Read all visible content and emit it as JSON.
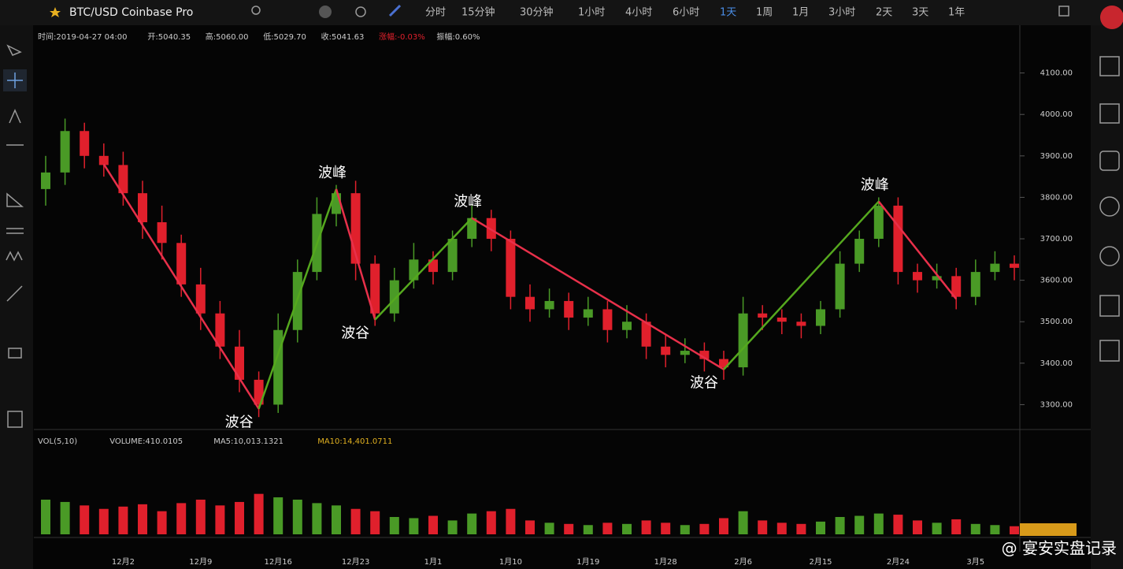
{
  "header": {
    "symbol": "BTC/USD Coinbase Pro",
    "intervals": [
      "分时",
      "15分钟",
      "30分钟",
      "1小时",
      "4小时",
      "6小时",
      "1天",
      "1周",
      "1月",
      "3小时",
      "2天",
      "3天",
      "1年"
    ],
    "active_interval": 6
  },
  "info_bar": [
    "时间:2019-04-27 04:00",
    "开:5040.35",
    "高:5060.00",
    "低:5029.70",
    "收:5041.63",
    "涨幅:-0.03%",
    "振幅:0.60%"
  ],
  "volume_legend": [
    "VOL(5,10)",
    "VOLUME:410.0105",
    "MA5:10,013.1321",
    "MA10:14,401.0711"
  ],
  "watermark": "@ 宴安实盘记录",
  "chart_data": {
    "type": "candlestick",
    "categories": [
      null,
      null,
      null,
      null,
      "12月2",
      null,
      null,
      null,
      "12月9",
      null,
      null,
      null,
      "12月16",
      null,
      null,
      null,
      "12月23",
      null,
      null,
      null,
      "1月1",
      null,
      null,
      null,
      "1月10",
      null,
      null,
      null,
      "1月19",
      null,
      null,
      null,
      "1月28",
      null,
      null,
      null,
      "2月6",
      null,
      null,
      null,
      "2月15",
      null,
      null,
      null,
      "2月24",
      null,
      null,
      null,
      "3月5",
      null,
      null
    ],
    "open": [
      3820,
      3860,
      3960,
      3900,
      3878,
      3810,
      3740,
      3690,
      3590,
      3520,
      3440,
      3360,
      3300,
      3480,
      3620,
      3760,
      3810,
      3640,
      3520,
      3600,
      3650,
      3620,
      3700,
      3750,
      3700,
      3560,
      3530,
      3550,
      3510,
      3530,
      3480,
      3500,
      3440,
      3420,
      3430,
      3410,
      3390,
      3520,
      3510,
      3500,
      3490,
      3530,
      3640,
      3700,
      3780,
      3620,
      3600,
      3610,
      3560,
      3620,
      3640
    ],
    "high": [
      3900,
      3990,
      3980,
      3930,
      3910,
      3840,
      3780,
      3710,
      3630,
      3550,
      3480,
      3380,
      3520,
      3650,
      3800,
      3830,
      3840,
      3660,
      3630,
      3690,
      3670,
      3720,
      3780,
      3770,
      3720,
      3590,
      3580,
      3570,
      3560,
      3550,
      3540,
      3520,
      3470,
      3460,
      3450,
      3430,
      3560,
      3540,
      3530,
      3520,
      3550,
      3670,
      3720,
      3800,
      3800,
      3640,
      3640,
      3630,
      3650,
      3670,
      3660
    ],
    "low": [
      3780,
      3830,
      3870,
      3850,
      3780,
      3700,
      3650,
      3560,
      3480,
      3410,
      3330,
      3270,
      3280,
      3450,
      3600,
      3730,
      3600,
      3490,
      3500,
      3580,
      3590,
      3600,
      3680,
      3670,
      3530,
      3500,
      3510,
      3480,
      3490,
      3450,
      3460,
      3410,
      3390,
      3400,
      3380,
      3360,
      3370,
      3480,
      3470,
      3460,
      3470,
      3510,
      3620,
      3680,
      3590,
      3570,
      3580,
      3530,
      3540,
      3600,
      3600
    ],
    "close": [
      3860,
      3960,
      3900,
      3878,
      3810,
      3740,
      3690,
      3590,
      3520,
      3440,
      3360,
      3300,
      3480,
      3620,
      3760,
      3810,
      3640,
      3520,
      3600,
      3650,
      3620,
      3700,
      3750,
      3700,
      3560,
      3530,
      3550,
      3510,
      3530,
      3480,
      3500,
      3440,
      3420,
      3430,
      3410,
      3390,
      3520,
      3510,
      3500,
      3490,
      3530,
      3640,
      3700,
      3780,
      3620,
      3600,
      3610,
      3560,
      3620,
      3640,
      3630
    ],
    "volume": [
      30,
      28,
      25,
      22,
      24,
      26,
      20,
      27,
      30,
      25,
      28,
      35,
      32,
      30,
      27,
      25,
      22,
      20,
      15,
      14,
      16,
      12,
      18,
      20,
      22,
      12,
      10,
      9,
      8,
      10,
      9,
      12,
      10,
      8,
      9,
      14,
      20,
      12,
      10,
      9,
      11,
      15,
      16,
      18,
      17,
      12,
      10,
      13,
      9,
      8,
      7
    ],
    "up_color": "#4a9a26",
    "down_color": "#e0202c",
    "ylim": [
      3240,
      4200
    ],
    "yticks": [
      {
        "value": 3300,
        "label": "3300.00"
      },
      {
        "value": 3400,
        "label": "3400.00"
      },
      {
        "value": 3500,
        "label": "3500.00"
      },
      {
        "value": 3600,
        "label": "3600.00"
      },
      {
        "value": 3700,
        "label": "3700.00"
      },
      {
        "value": 3800,
        "label": "3800.00"
      },
      {
        "value": 3900,
        "label": "3900.00"
      },
      {
        "value": 4000,
        "label": "4000.00"
      },
      {
        "value": 4100,
        "label": "4100.00"
      }
    ],
    "volume_ylim": [
      0,
      60
    ],
    "waves": [
      {
        "index": 3,
        "price": 3880
      },
      {
        "label": "波谷",
        "index": 11,
        "price": 3290
      },
      {
        "label": "波峰",
        "index": 15,
        "price": 3820
      },
      {
        "label": "波谷",
        "index": 17,
        "price": 3505
      },
      {
        "label": "波峰",
        "index": 22,
        "price": 3750
      },
      {
        "label": "波谷",
        "index": 35,
        "price": 3385
      },
      {
        "label": "波峰",
        "index": 43,
        "price": 3790
      },
      {
        "index": 47,
        "price": 3555
      }
    ],
    "wave_up_color": "#55a81e",
    "wave_down_color": "#e8304a"
  }
}
